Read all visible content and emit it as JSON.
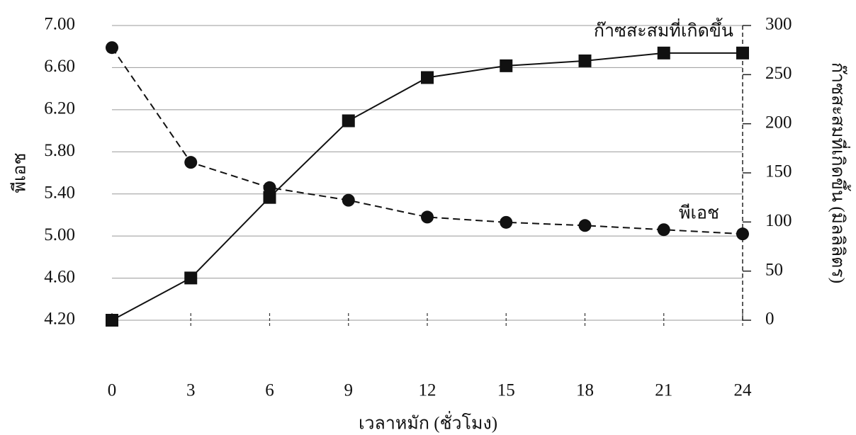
{
  "chart_data": {
    "type": "line",
    "x_label": "เวลาหมัก (ชั่วโมง)",
    "y_label": "พีเอช",
    "y2_label": "ก๊าซสะสมที่เกิดขึ้น (มิลลิลิตร)",
    "x": [
      0,
      3,
      6,
      9,
      12,
      15,
      18,
      21,
      24
    ],
    "xlim": [
      0,
      24
    ],
    "xticks": [
      0,
      3,
      6,
      9,
      12,
      15,
      18,
      21,
      24
    ],
    "ylim": [
      4.2,
      7.0
    ],
    "yticks": [
      {
        "value": 4.2,
        "label": "4.20"
      },
      {
        "value": 4.6,
        "label": "4.60"
      },
      {
        "value": 5.0,
        "label": "5.00"
      },
      {
        "value": 5.4,
        "label": "5.40"
      },
      {
        "value": 5.8,
        "label": "5.80"
      },
      {
        "value": 6.2,
        "label": "6.20"
      },
      {
        "value": 6.6,
        "label": "6.60"
      },
      {
        "value": 7.0,
        "label": "7.00"
      }
    ],
    "y2lim": [
      0,
      300
    ],
    "y2ticks": [
      0,
      50,
      100,
      150,
      200,
      250,
      300
    ],
    "grid": true,
    "series": [
      {
        "name": "ก๊าซสะสมที่เกิดขึ้น",
        "color": "#111111",
        "axis": "y2",
        "dashed": false,
        "marker": "square",
        "values": [
          0,
          43,
          125,
          203,
          247,
          259,
          264,
          272,
          272
        ]
      },
      {
        "name": "พีเอช",
        "color": "#111111",
        "axis": "y",
        "dashed": true,
        "marker": "circle",
        "values": [
          6.79,
          5.7,
          5.46,
          5.34,
          5.18,
          5.13,
          5.1,
          5.06,
          5.02
        ]
      }
    ]
  }
}
